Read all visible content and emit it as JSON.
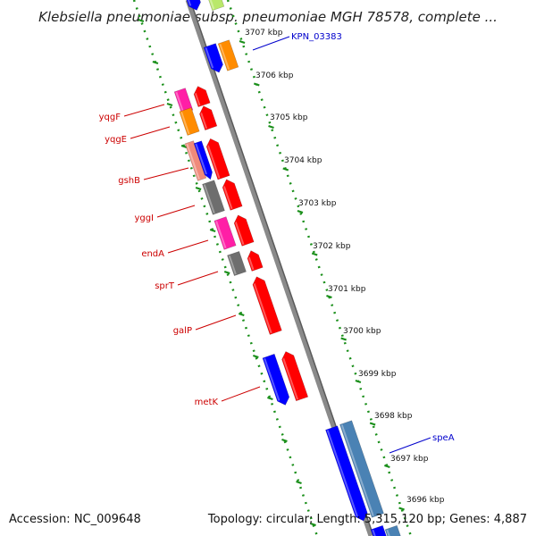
{
  "title": "Klebsiella pneumoniae subsp. pneumoniae MGH 78578, complete ...",
  "footer": {
    "accession": "Accession: NC_009648",
    "topology": "Topology: circular; Length: 5,315,120 bp; Genes: 4,887"
  },
  "colors": {
    "red": "#ff0000",
    "blue": "#0000ff",
    "orange": "#ff8c00",
    "pink": "#ff1fa6",
    "salmon": "#f08a7a",
    "gray": "#6e6e6e",
    "steelblue": "#4a82b4",
    "lightgreen": "#b9e86a",
    "backbone": "#8a8a8a",
    "tick": "#1a8f1a",
    "label_red": "#cc0000",
    "label_blue": "#0000cc"
  },
  "ruler": {
    "unit": "kbp",
    "labels": [
      "3707 kbp",
      "3706 kbp",
      "3705 kbp",
      "3704 kbp",
      "3703 kbp",
      "3702 kbp",
      "3701 kbp",
      "3700 kbp",
      "3699 kbp",
      "3698 kbp",
      "3697 kbp",
      "3696 kbp"
    ]
  },
  "gene_labels": [
    {
      "text": "yqgF",
      "color": "label_red"
    },
    {
      "text": "yqgE",
      "color": "label_red"
    },
    {
      "text": "gshB",
      "color": "label_red"
    },
    {
      "text": "yggI",
      "color": "label_red"
    },
    {
      "text": "endA",
      "color": "label_red"
    },
    {
      "text": "sprT",
      "color": "label_red"
    },
    {
      "text": "galP",
      "color": "label_red"
    },
    {
      "text": "metK",
      "color": "label_red"
    },
    {
      "text": "KPN_03383",
      "color": "label_blue"
    },
    {
      "text": "speA",
      "color": "label_blue"
    }
  ],
  "features": [
    {
      "color": "blue"
    },
    {
      "color": "lightgreen"
    },
    {
      "color": "blue"
    },
    {
      "color": "orange"
    },
    {
      "color": "pink"
    },
    {
      "color": "red"
    },
    {
      "color": "orange"
    },
    {
      "color": "red"
    },
    {
      "color": "salmon"
    },
    {
      "color": "blue"
    },
    {
      "color": "red"
    },
    {
      "color": "gray"
    },
    {
      "color": "red"
    },
    {
      "color": "pink"
    },
    {
      "color": "red"
    },
    {
      "color": "gray"
    },
    {
      "color": "red"
    },
    {
      "color": "red"
    },
    {
      "color": "blue"
    },
    {
      "color": "red"
    },
    {
      "color": "blue"
    },
    {
      "color": "steelblue"
    },
    {
      "color": "blue"
    },
    {
      "color": "steelblue"
    }
  ]
}
